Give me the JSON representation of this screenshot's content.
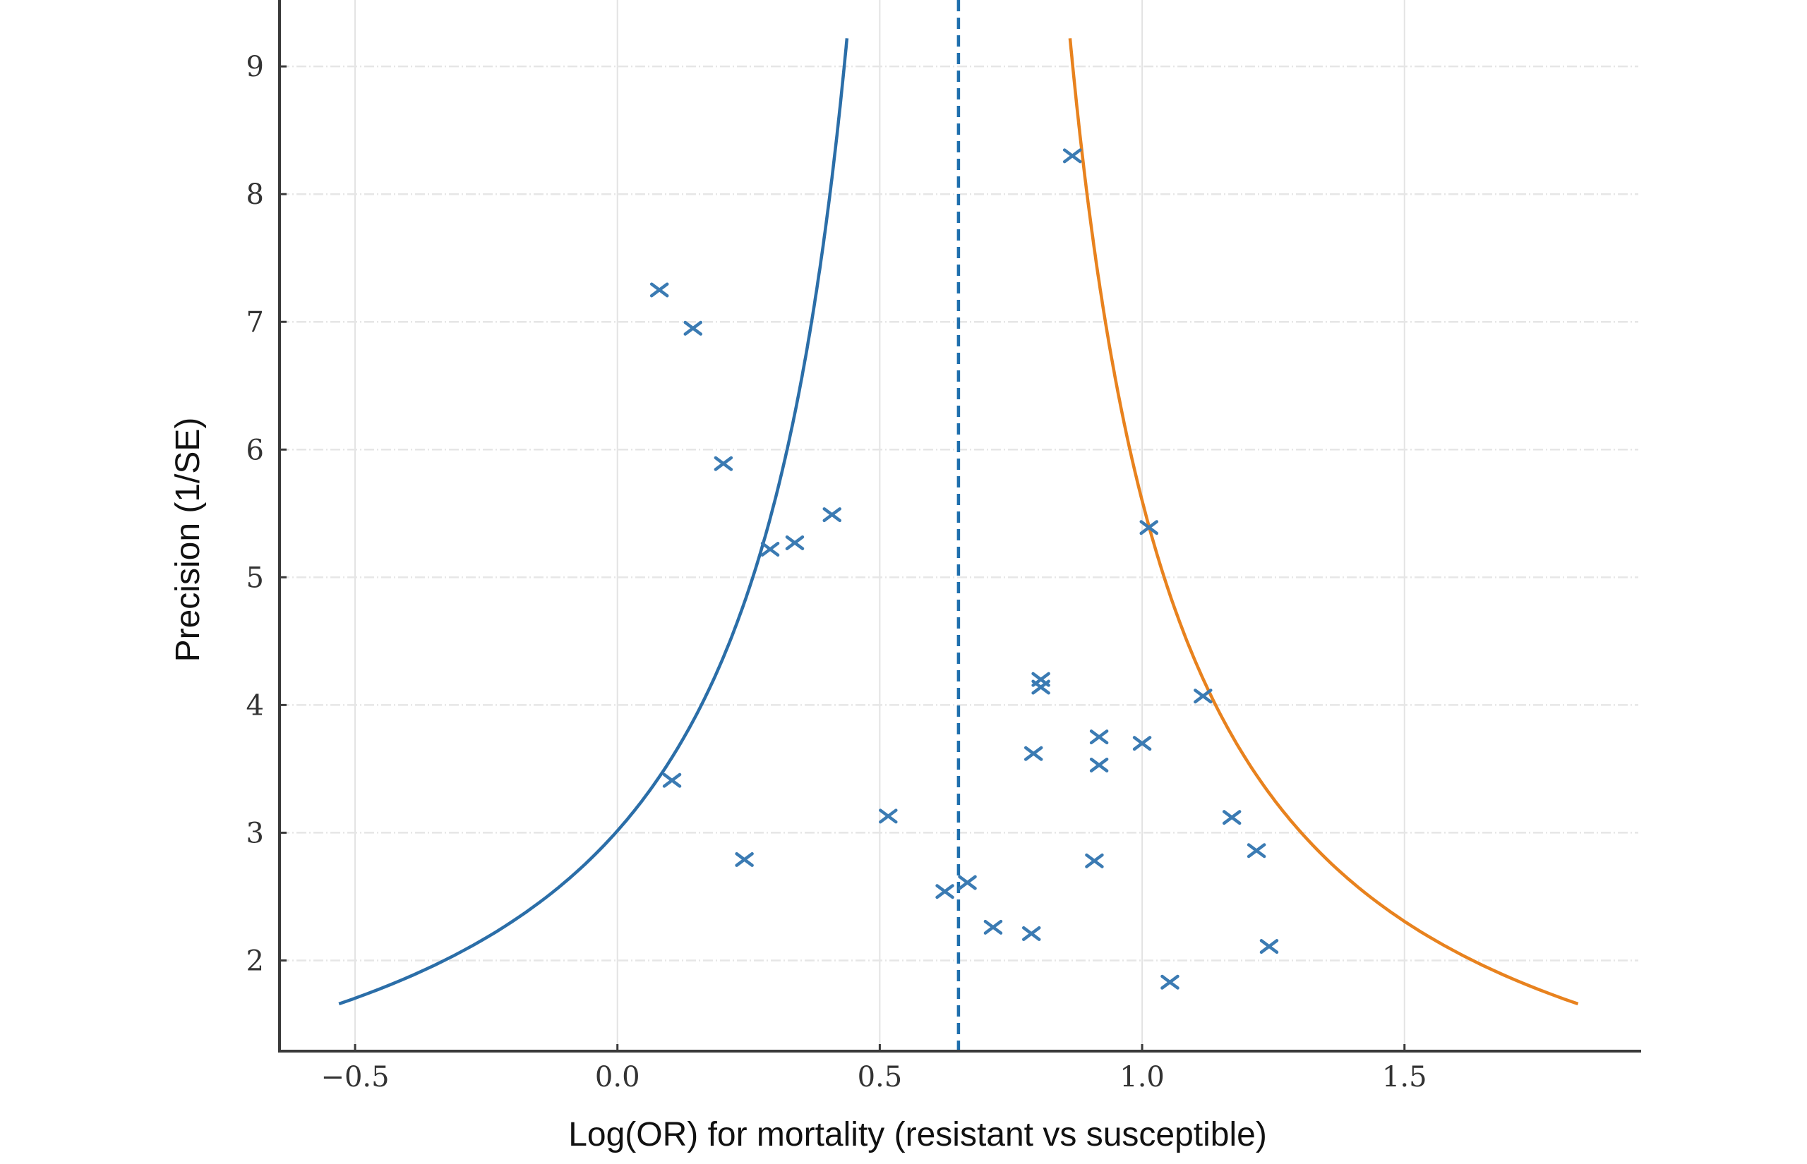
{
  "chart_data": {
    "type": "scatter",
    "title": "",
    "xlabel": "Log(OR) for mortality (resistant  vs susceptible)",
    "ylabel": "Precision  (1/SE)",
    "xlim": [
      -0.644,
      1.951
    ],
    "ylim": [
      1.29,
      9.52
    ],
    "xticks": [
      -0.5,
      0.0,
      0.5,
      1.0,
      1.5
    ],
    "xtick_labels": [
      "−0.5",
      "0.0",
      "0.5",
      "1.0",
      "1.5"
    ],
    "yticks": [
      2,
      3,
      4,
      5,
      6,
      7,
      8,
      9
    ],
    "ytick_labels": [
      "2",
      "3",
      "4",
      "5",
      "6",
      "7",
      "8",
      "9"
    ],
    "grid": true,
    "legend": null,
    "pooled_estimate": {
      "x": 0.65,
      "style": "dashed",
      "color": "#1f6fad"
    },
    "funnel": {
      "center": 0.65,
      "z": 1.96,
      "y_range": [
        1.66,
        9.22
      ],
      "lower_bound_color": "#2b6ea8",
      "upper_bound_color": "#e8821e"
    },
    "series": [
      {
        "name": "studies",
        "marker": "x",
        "color": "#3b7bb3",
        "points": [
          {
            "x": 0.08,
            "y": 7.25
          },
          {
            "x": 0.144,
            "y": 6.95
          },
          {
            "x": 0.202,
            "y": 5.89
          },
          {
            "x": 0.409,
            "y": 5.49
          },
          {
            "x": 0.338,
            "y": 5.27
          },
          {
            "x": 0.291,
            "y": 5.22
          },
          {
            "x": 0.104,
            "y": 3.41
          },
          {
            "x": 0.242,
            "y": 2.79
          },
          {
            "x": 0.516,
            "y": 3.13
          },
          {
            "x": 0.624,
            "y": 2.54
          },
          {
            "x": 0.667,
            "y": 2.61
          },
          {
            "x": 0.716,
            "y": 2.26
          },
          {
            "x": 0.789,
            "y": 2.21
          },
          {
            "x": 0.793,
            "y": 3.62
          },
          {
            "x": 0.807,
            "y": 4.2
          },
          {
            "x": 0.807,
            "y": 4.14
          },
          {
            "x": 0.918,
            "y": 3.75
          },
          {
            "x": 0.918,
            "y": 3.53
          },
          {
            "x": 1.0,
            "y": 3.7
          },
          {
            "x": 0.909,
            "y": 2.78
          },
          {
            "x": 0.867,
            "y": 8.3
          },
          {
            "x": 1.013,
            "y": 5.39
          },
          {
            "x": 1.116,
            "y": 4.07
          },
          {
            "x": 1.171,
            "y": 3.12
          },
          {
            "x": 1.218,
            "y": 2.86
          },
          {
            "x": 1.242,
            "y": 2.11
          },
          {
            "x": 1.053,
            "y": 1.83
          }
        ]
      }
    ]
  }
}
